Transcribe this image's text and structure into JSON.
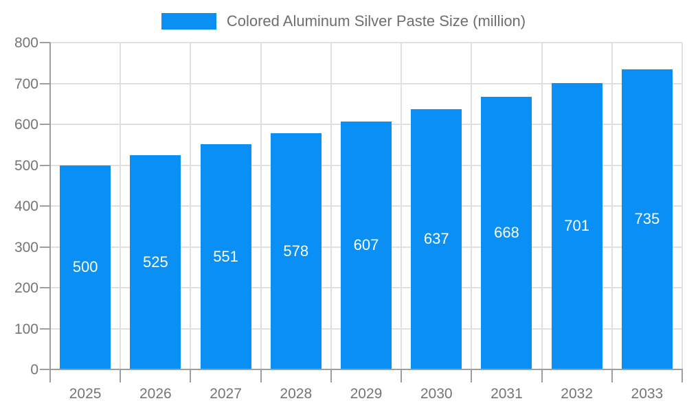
{
  "chart_data": {
    "type": "bar",
    "title": "Colored Aluminum Silver Paste Size (million)",
    "categories": [
      "2025",
      "2026",
      "2027",
      "2028",
      "2029",
      "2030",
      "2031",
      "2032",
      "2033"
    ],
    "values": [
      500,
      525,
      551,
      578,
      607,
      637,
      668,
      701,
      735
    ],
    "series": [
      {
        "name": "Colored Aluminum Silver Paste Size (million)",
        "values": [
          500,
          525,
          551,
          578,
          607,
          637,
          668,
          701,
          735
        ]
      }
    ],
    "xlabel": "",
    "ylabel": "",
    "ylim": [
      0,
      800
    ],
    "ytick_step": 100,
    "ytick_labels": [
      "0",
      "100",
      "200",
      "300",
      "400",
      "500",
      "600",
      "700",
      "800"
    ],
    "grid": true,
    "legend_position": "top",
    "value_labels": "inside-center",
    "colors": {
      "bar": "#0a90f5",
      "axis": "#9e9e9e",
      "grid": "#e0e0e0",
      "tick_label": "#757575",
      "legend_text": "#6e6e6e",
      "value_label": "#ffffff"
    }
  }
}
